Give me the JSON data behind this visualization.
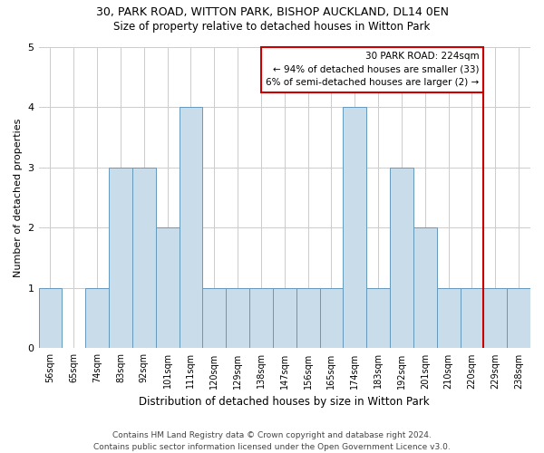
{
  "title": "30, PARK ROAD, WITTON PARK, BISHOP AUCKLAND, DL14 0EN",
  "subtitle": "Size of property relative to detached houses in Witton Park",
  "xlabel": "Distribution of detached houses by size in Witton Park",
  "ylabel": "Number of detached properties",
  "bin_labels": [
    "56sqm",
    "65sqm",
    "74sqm",
    "83sqm",
    "92sqm",
    "101sqm",
    "111sqm",
    "120sqm",
    "129sqm",
    "138sqm",
    "147sqm",
    "156sqm",
    "165sqm",
    "174sqm",
    "183sqm",
    "192sqm",
    "201sqm",
    "210sqm",
    "220sqm",
    "229sqm",
    "238sqm"
  ],
  "bar_heights": [
    1,
    0,
    1,
    3,
    3,
    2,
    4,
    1,
    1,
    1,
    1,
    1,
    1,
    4,
    1,
    3,
    2,
    1,
    1,
    1,
    1
  ],
  "bar_color": "#c9dcea",
  "bar_edge_color": "#6699bb",
  "property_label": "30 PARK ROAD: 224sqm",
  "annotation_line1": "← 94% of detached houses are smaller (33)",
  "annotation_line2": "6% of semi-detached houses are larger (2) →",
  "annotation_box_color": "#ffffff",
  "annotation_box_edge": "#cc0000",
  "vline_color": "#cc0000",
  "ylim": [
    0,
    5
  ],
  "yticks": [
    0,
    1,
    2,
    3,
    4,
    5
  ],
  "footer_line1": "Contains HM Land Registry data © Crown copyright and database right 2024.",
  "footer_line2": "Contains public sector information licensed under the Open Government Licence v3.0.",
  "background_color": "#ffffff",
  "grid_color": "#cccccc",
  "title_fontsize": 9,
  "subtitle_fontsize": 8.5,
  "xlabel_fontsize": 8.5,
  "ylabel_fontsize": 8,
  "tick_fontsize": 7,
  "footer_fontsize": 6.5
}
